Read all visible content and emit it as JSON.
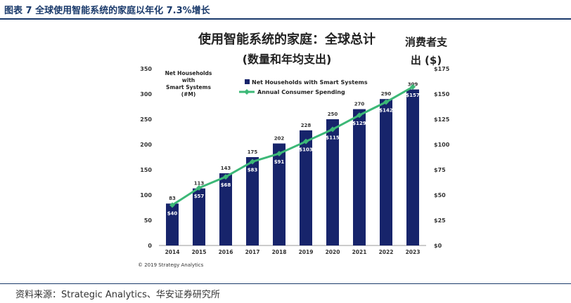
{
  "figure_title": "图表 7  全球使用智能系统的家庭以年化 7.3%增长",
  "source": "资料来源：Strategic Analytics、华安证券研究所",
  "colors": {
    "bar": "#17246b",
    "line": "#3cb877",
    "title": "#1a3a6b"
  },
  "chart_data": {
    "type": "bar",
    "title": "使用智能系统的家庭：全球总计",
    "subtitle": "(数量和年均支出)",
    "left_axis_label": [
      "Net Households",
      "with",
      "Smart Systems",
      "(#M)"
    ],
    "right_axis_label": [
      "消费者支",
      "出  ($)"
    ],
    "categories": [
      "2014",
      "2015",
      "2016",
      "2017",
      "2018",
      "2019",
      "2020",
      "2021",
      "2022",
      "2023"
    ],
    "series": [
      {
        "name": "Net Households with Smart Systems",
        "type": "bar",
        "axis": "left",
        "values": [
          83,
          113,
          143,
          175,
          202,
          228,
          250,
          270,
          290,
          309
        ],
        "labels": [
          "83",
          "113",
          "143",
          "175",
          "202",
          "228",
          "250",
          "270",
          "290",
          "309"
        ]
      },
      {
        "name": "Annual Consumer Spending",
        "type": "line",
        "axis": "right",
        "values": [
          40,
          57,
          68,
          83,
          91,
          103,
          115,
          129,
          142,
          157
        ],
        "labels": [
          "$40",
          "$57",
          "$68",
          "$83",
          "$91",
          "$103",
          "$115",
          "$129",
          "$142",
          "$157"
        ]
      }
    ],
    "ylim_left": [
      0,
      350
    ],
    "yticks_left": [
      "0",
      "50",
      "100",
      "150",
      "200",
      "250",
      "300",
      "350"
    ],
    "ylim_right": [
      0,
      175
    ],
    "yticks_right": [
      "$0",
      "$25",
      "$50",
      "$75",
      "$100",
      "$125",
      "$150",
      "$175"
    ],
    "legend_position": "top-center",
    "copyright": "© 2019 Strategy Analytics"
  }
}
